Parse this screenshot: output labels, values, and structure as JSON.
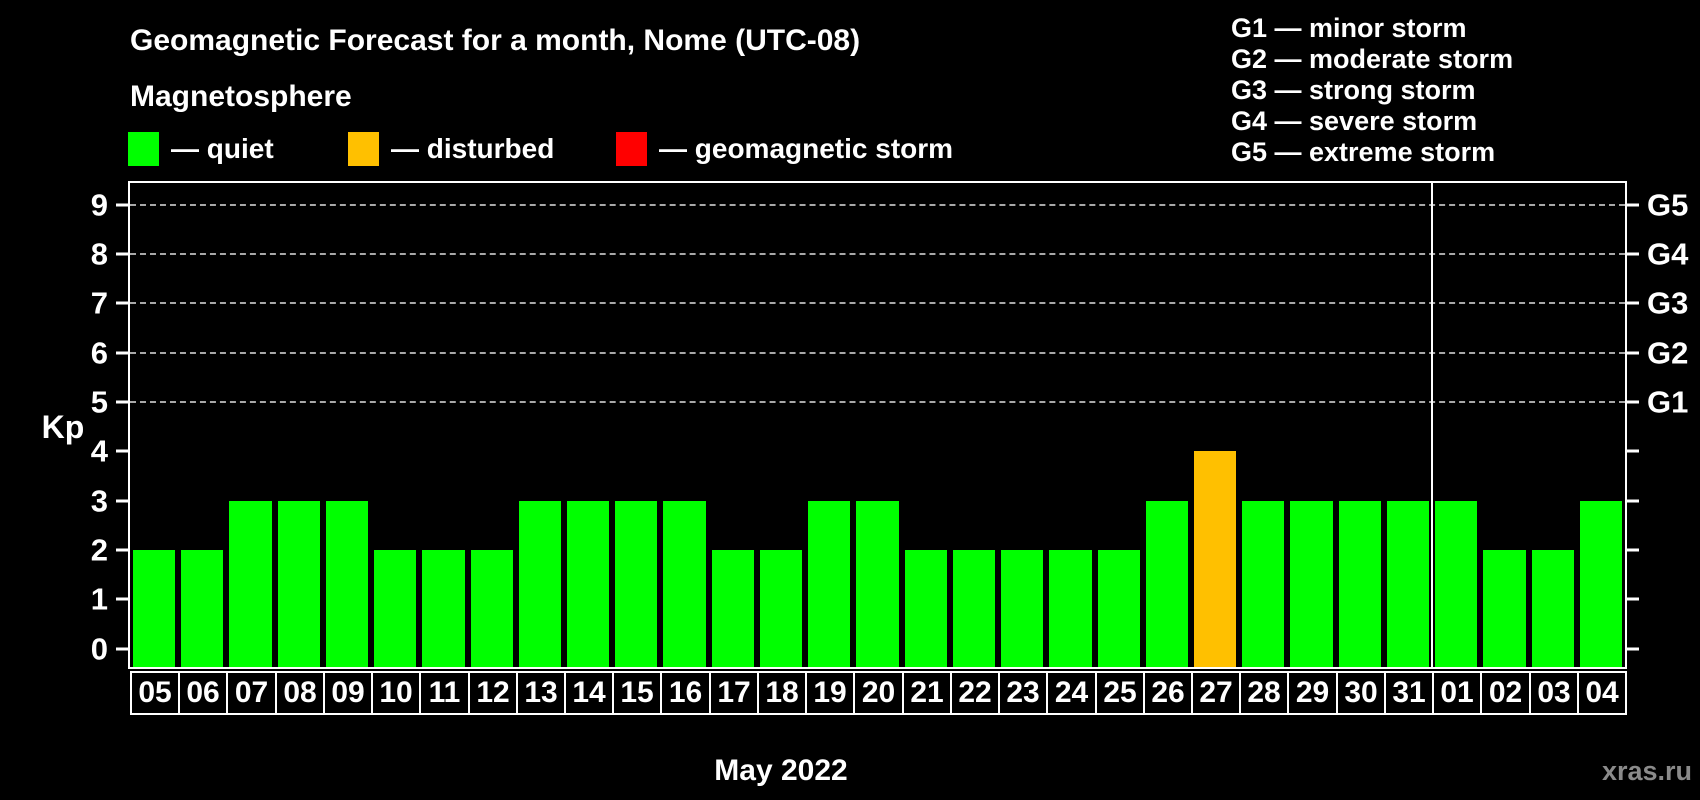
{
  "header": {
    "title": "Geomagnetic Forecast for a month, Nome (UTC-08)",
    "subtitle": "Magnetosphere"
  },
  "legend": {
    "items": [
      {
        "name": "quiet",
        "label": "— quiet",
        "color": "#00ff00"
      },
      {
        "name": "disturbed",
        "label": "— disturbed",
        "color": "#ffc000"
      },
      {
        "name": "storm",
        "label": "— geomagnetic storm",
        "color": "#ff0000"
      }
    ]
  },
  "g_legend": [
    "G1 — minor storm",
    "G2 — moderate storm",
    "G3 — strong storm",
    "G4 — severe storm",
    "G5 — extreme storm"
  ],
  "watermark": "xras.ru",
  "chart_data": {
    "type": "bar",
    "title": "Geomagnetic Forecast for a month, Nome (UTC-08)",
    "ylabel": "Kp",
    "xlabel": "May 2022",
    "ylim": [
      0,
      9
    ],
    "yticks": [
      0,
      1,
      2,
      3,
      4,
      5,
      6,
      7,
      8,
      9
    ],
    "grid": "horizontal dashed lines at Kp 5-9",
    "legend_position": "top-left",
    "g_levels": [
      {
        "kp": 5,
        "label": "G1"
      },
      {
        "kp": 6,
        "label": "G2"
      },
      {
        "kp": 7,
        "label": "G3"
      },
      {
        "kp": 8,
        "label": "G4"
      },
      {
        "kp": 9,
        "label": "G5"
      }
    ],
    "categories": [
      "05",
      "06",
      "07",
      "08",
      "09",
      "10",
      "11",
      "12",
      "13",
      "14",
      "15",
      "16",
      "17",
      "18",
      "19",
      "20",
      "21",
      "22",
      "23",
      "24",
      "25",
      "26",
      "27",
      "28",
      "29",
      "30",
      "31",
      "01",
      "02",
      "03",
      "04"
    ],
    "values": [
      2,
      2,
      3,
      3,
      3,
      2,
      2,
      2,
      3,
      3,
      3,
      3,
      2,
      2,
      3,
      3,
      2,
      2,
      2,
      2,
      2,
      3,
      4,
      3,
      3,
      3,
      3,
      3,
      2,
      2,
      3
    ],
    "bar_status": [
      "quiet",
      "quiet",
      "quiet",
      "quiet",
      "quiet",
      "quiet",
      "quiet",
      "quiet",
      "quiet",
      "quiet",
      "quiet",
      "quiet",
      "quiet",
      "quiet",
      "quiet",
      "quiet",
      "quiet",
      "quiet",
      "quiet",
      "quiet",
      "quiet",
      "quiet",
      "disturbed",
      "quiet",
      "quiet",
      "quiet",
      "quiet",
      "quiet",
      "quiet",
      "quiet",
      "quiet"
    ],
    "status_colors": {
      "quiet": "#00ff00",
      "disturbed": "#ffc000",
      "storm": "#ff0000"
    },
    "month_separator_before_index": 27
  }
}
